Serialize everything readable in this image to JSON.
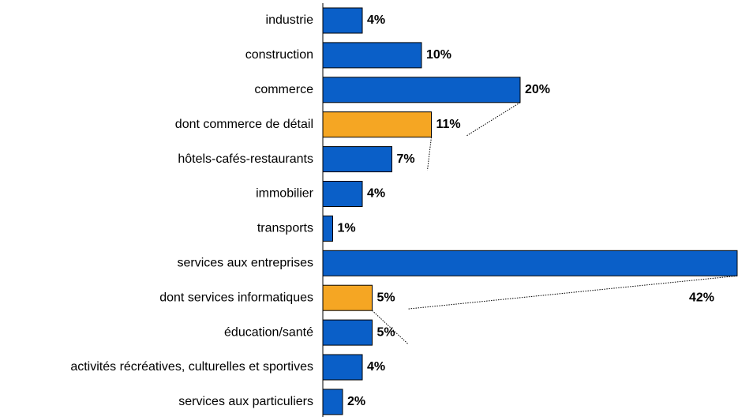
{
  "chart_data": {
    "type": "bar",
    "orientation": "horizontal",
    "categories": [
      "industrie",
      "construction",
      "commerce",
      "dont commerce de détail",
      "hôtels-cafés-restaurants",
      "immobilier",
      "transports",
      "services aux entreprises",
      "dont services informatiques",
      "éducation/santé",
      "activités récréatives, culturelles et sportives",
      "services aux particuliers"
    ],
    "values": [
      4,
      10,
      20,
      11,
      7,
      4,
      1,
      42,
      5,
      5,
      4,
      2
    ],
    "value_labels": [
      "4%",
      "10%",
      "20%",
      "11%",
      "7%",
      "4%",
      "1%",
      "42%",
      "5%",
      "5%",
      "4%",
      "2%"
    ],
    "colors": [
      "#0a5fc8",
      "#0a5fc8",
      "#0a5fc8",
      "#f5a623",
      "#0a5fc8",
      "#0a5fc8",
      "#0a5fc8",
      "#0a5fc8",
      "#f5a623",
      "#0a5fc8",
      "#0a5fc8",
      "#0a5fc8"
    ]
  }
}
